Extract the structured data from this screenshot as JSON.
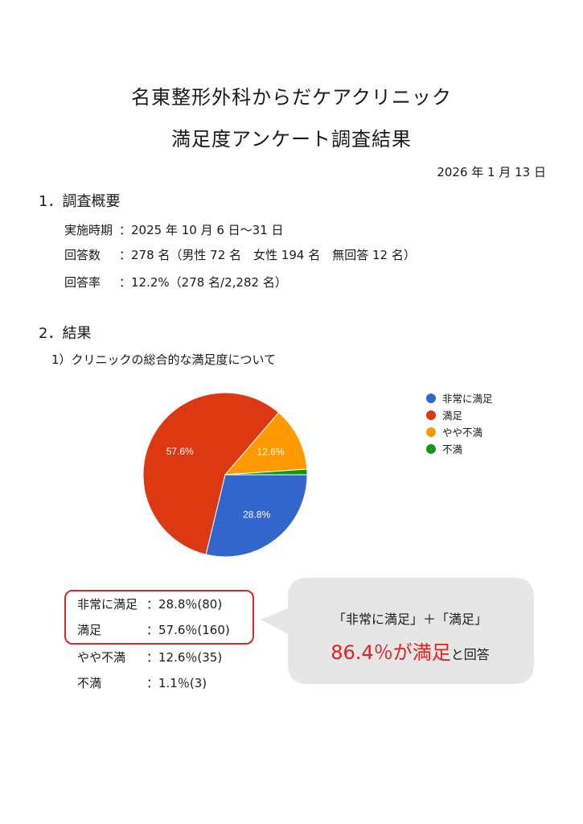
{
  "title_line1": "名東整形外科からだケアクリニック",
  "title_line2": "満足度アンケート調査結果",
  "date": "2026 年 1 月 13 日",
  "section1": {
    "heading": "1．調査概要",
    "rows": [
      {
        "label": "実施時期",
        "value": "：2025 年 10 月 6 日～31 日"
      },
      {
        "label": "回答数",
        "value": "：278 名（男性 72 名　女性 194 名　無回答 12 名）"
      },
      {
        "label": "回答率",
        "value": "：12.2%（278 名/2,282 名）"
      }
    ]
  },
  "section2": {
    "heading": "2．結果",
    "subheading": "1）クリニックの総合的な満足度について"
  },
  "chart_data": {
    "type": "pie",
    "categories": [
      "非常に満足",
      "満足",
      "やや不満",
      "不満"
    ],
    "values": [
      28.8,
      57.6,
      12.6,
      1.1
    ],
    "slice_labels": [
      "28.8%",
      "57.6%",
      "12.6%",
      ""
    ],
    "colors": [
      "#3366cc",
      "#dc3912",
      "#ff9900",
      "#109618"
    ],
    "legend_position": "right"
  },
  "results": [
    {
      "label": "非常に満足",
      "value": "：28.8％(80)"
    },
    {
      "label": "満足",
      "value": "：57.6％(160)"
    },
    {
      "label": "やや不満",
      "value": "：12.6％(35)"
    },
    {
      "label": "不満",
      "value": "：1.1％(3)"
    }
  ],
  "callout": {
    "line1": "「非常に満足」＋「満足」",
    "highlight": "86.4％が満足",
    "suffix": "と回答",
    "highlight_color": "#e02222",
    "bubble_color": "#e6e6e6"
  }
}
